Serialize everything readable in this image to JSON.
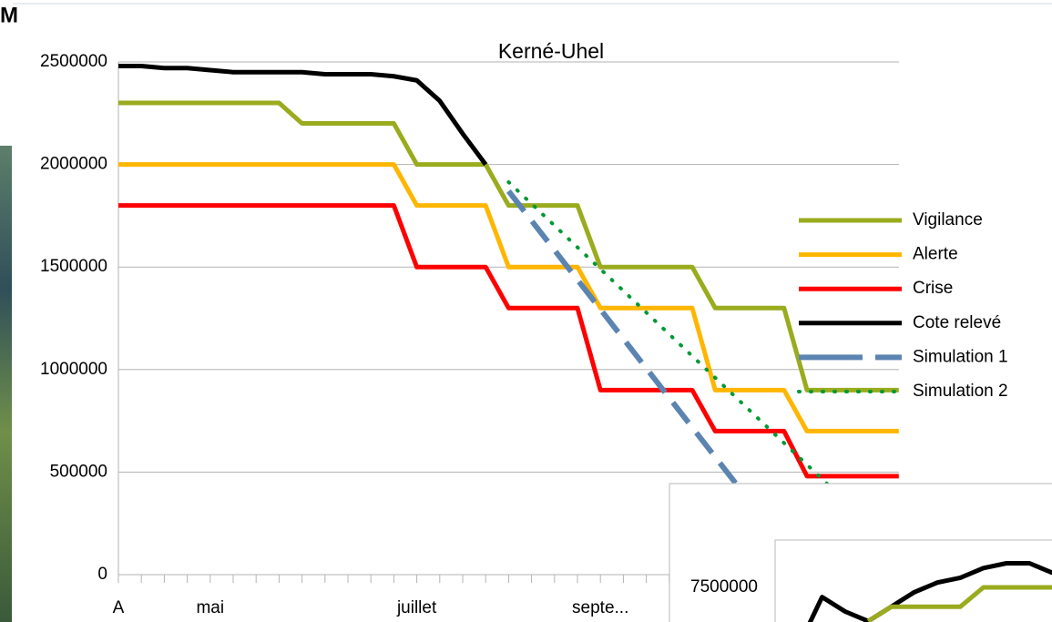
{
  "header": {
    "text": "M"
  },
  "chart_data": [
    {
      "type": "line",
      "title": "Kerné-Uhel",
      "categories": [
        "A",
        null,
        null,
        null,
        "mai",
        null,
        null,
        null,
        null,
        null,
        null,
        null,
        null,
        "juillet",
        null,
        null,
        null,
        null,
        null,
        null,
        null,
        "septe...",
        null,
        null,
        null,
        null,
        null,
        null,
        null,
        null,
        null,
        null,
        null,
        null,
        null
      ],
      "ylim": [
        0,
        2500000
      ],
      "yticks": [
        0,
        500000,
        1000000,
        1500000,
        2000000,
        2500000
      ],
      "grid": true,
      "legend": "right",
      "series": [
        {
          "name": "Vigilance",
          "color": "#9aab1e",
          "values": [
            2300000,
            2300000,
            2300000,
            2300000,
            2300000,
            2300000,
            2300000,
            2300000,
            2200000,
            2200000,
            2200000,
            2200000,
            2200000,
            2000000,
            2000000,
            2000000,
            2000000,
            1800000,
            1800000,
            1800000,
            1800000,
            1500000,
            1500000,
            1500000,
            1500000,
            1500000,
            1300000,
            1300000,
            1300000,
            1300000,
            900000,
            900000,
            900000,
            900000,
            900000
          ]
        },
        {
          "name": "Alerte",
          "color": "#ffb600",
          "values": [
            2000000,
            2000000,
            2000000,
            2000000,
            2000000,
            2000000,
            2000000,
            2000000,
            2000000,
            2000000,
            2000000,
            2000000,
            2000000,
            1800000,
            1800000,
            1800000,
            1800000,
            1500000,
            1500000,
            1500000,
            1500000,
            1300000,
            1300000,
            1300000,
            1300000,
            1300000,
            900000,
            900000,
            900000,
            900000,
            700000,
            700000,
            700000,
            700000,
            700000
          ]
        },
        {
          "name": "Crise",
          "color": "#ff0000",
          "values": [
            1800000,
            1800000,
            1800000,
            1800000,
            1800000,
            1800000,
            1800000,
            1800000,
            1800000,
            1800000,
            1800000,
            1800000,
            1800000,
            1500000,
            1500000,
            1500000,
            1500000,
            1300000,
            1300000,
            1300000,
            1300000,
            900000,
            900000,
            900000,
            900000,
            900000,
            700000,
            700000,
            700000,
            700000,
            480000,
            480000,
            480000,
            480000,
            480000
          ]
        },
        {
          "name": "Cote relevé",
          "color": "#000000",
          "values": [
            2480000,
            2480000,
            2470000,
            2470000,
            2460000,
            2450000,
            2450000,
            2450000,
            2450000,
            2440000,
            2440000,
            2440000,
            2430000,
            2410000,
            2310000,
            2150000,
            2000000,
            null,
            null,
            null,
            null,
            null,
            null,
            null,
            null,
            null,
            null,
            null,
            null,
            null,
            null,
            null,
            null,
            null,
            null
          ]
        },
        {
          "name": "Simulation 1",
          "color": "#5b84b1",
          "dash": "dashed",
          "values": [
            null,
            null,
            null,
            null,
            null,
            null,
            null,
            null,
            null,
            null,
            null,
            null,
            null,
            null,
            null,
            null,
            null,
            1870000,
            1726000,
            1582000,
            1438000,
            1294000,
            1150000,
            1006000,
            862000,
            718000,
            574000,
            430000,
            286000,
            null,
            null,
            null,
            null,
            null,
            null
          ]
        },
        {
          "name": "Simulation 2",
          "color": "#009933",
          "dash": "dotted",
          "values": [
            null,
            null,
            null,
            null,
            null,
            null,
            null,
            null,
            null,
            null,
            null,
            null,
            null,
            null,
            null,
            null,
            null,
            1914000,
            1808000,
            1702000,
            1596000,
            1490000,
            1384000,
            1278000,
            1172000,
            1066000,
            960000,
            854000,
            748000,
            642000,
            536000,
            430000,
            null,
            null,
            null
          ]
        }
      ]
    },
    {
      "type": "line",
      "categories": [
        null,
        null,
        null,
        null,
        null,
        null,
        null,
        null,
        null,
        null,
        null,
        null,
        null
      ],
      "ylim": [
        6000000,
        8000000
      ],
      "yticks": [
        7500000
      ],
      "grid": false,
      "series": [
        {
          "color": "#000000",
          "values": [
            null,
            6900000,
            7400000,
            7250000,
            7150000,
            7300000,
            7450000,
            7550000,
            7600000,
            7700000,
            7750000,
            7750000,
            7650000
          ]
        },
        {
          "color": "#9aab1e",
          "values": [
            null,
            null,
            null,
            null,
            7150000,
            7300000,
            7300000,
            7300000,
            7300000,
            7500000,
            7500000,
            7500000,
            7500000
          ]
        }
      ]
    }
  ]
}
